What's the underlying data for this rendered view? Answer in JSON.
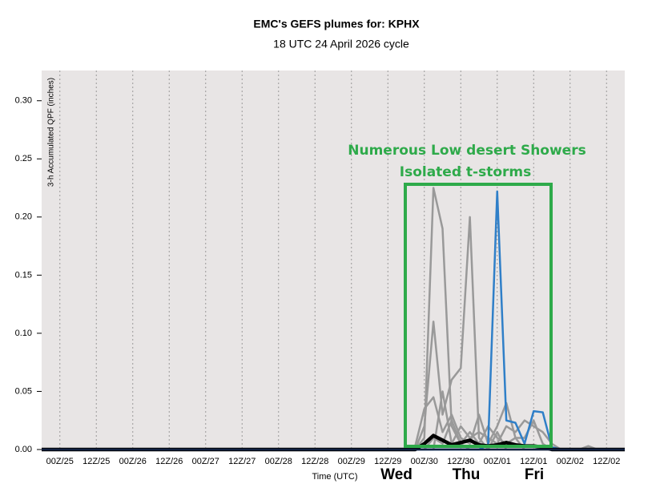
{
  "chart_data": {
    "type": "line",
    "title": "EMC's GEFS plumes for: KPHX",
    "subtitle": "18 UTC 24 April 2026 cycle",
    "ylabel": "3-h Accumulated QPF (inches)",
    "xlabel": "Time (UTC)",
    "annotations": [
      "Numerous Low desert Showers",
      "Isolated t-storms"
    ],
    "day_labels": [
      "Wed",
      "Thu",
      "Fri"
    ],
    "grid": "x",
    "background": "#e8e5e5",
    "categories": [
      null,
      null,
      "00Z/25",
      null,
      null,
      null,
      "12Z/25",
      null,
      null,
      null,
      "00Z/26",
      null,
      null,
      null,
      "12Z/26",
      null,
      null,
      null,
      "00Z/27",
      null,
      null,
      null,
      "12Z/27",
      null,
      null,
      null,
      "00Z/28",
      null,
      null,
      null,
      "12Z/28",
      null,
      null,
      null,
      "00Z/29",
      null,
      null,
      null,
      "12Z/29",
      null,
      null,
      null,
      "00Z/30",
      null,
      null,
      null,
      "12Z/30",
      null,
      null,
      null,
      "00Z/01",
      null,
      null,
      null,
      "12Z/01",
      null,
      null,
      null,
      "00Z/02",
      null,
      null,
      null,
      "12Z/02",
      null,
      null
    ],
    "ylim": [
      0,
      0.326
    ],
    "yticks": [
      {
        "value": 0,
        "label": "0.00"
      },
      {
        "value": 0.05,
        "label": "0.05"
      },
      {
        "value": 0.1,
        "label": "0.10"
      },
      {
        "value": 0.15,
        "label": "0.15"
      },
      {
        "value": 0.2,
        "label": "0.20"
      },
      {
        "value": 0.25,
        "label": "0.25"
      },
      {
        "value": 0.3,
        "label": "0.30"
      }
    ],
    "series": [
      {
        "color": "#999999",
        "linewidth": 2.5,
        "values": [
          0,
          0,
          0,
          0,
          0,
          0,
          0,
          0,
          0,
          0,
          0,
          0,
          0,
          0,
          0,
          0,
          0,
          0,
          0,
          0,
          0,
          0,
          0,
          0,
          0,
          0,
          0,
          0,
          0,
          0,
          0,
          0,
          0,
          0,
          0,
          0,
          0,
          0,
          0,
          0,
          0,
          0,
          0.01,
          0.225,
          0.19,
          0.02,
          0.005,
          0,
          0,
          0,
          0,
          0,
          0,
          0,
          0,
          0,
          0,
          0,
          0,
          0,
          0,
          0,
          0,
          0,
          0
        ]
      },
      {
        "color": "#999999",
        "linewidth": 2.5,
        "values": [
          0,
          0,
          0,
          0,
          0,
          0,
          0,
          0,
          0,
          0,
          0,
          0,
          0,
          0,
          0,
          0,
          0,
          0,
          0,
          0,
          0,
          0,
          0,
          0,
          0,
          0,
          0,
          0,
          0,
          0,
          0,
          0,
          0,
          0,
          0,
          0,
          0,
          0,
          0,
          0,
          0,
          0,
          0.02,
          0.11,
          0.03,
          0.06,
          0.07,
          0.2,
          0.01,
          0,
          0.015,
          0,
          0,
          0,
          0,
          0,
          0,
          0,
          0,
          0,
          0,
          0,
          0,
          0,
          0
        ]
      },
      {
        "color": "#999999",
        "linewidth": 2.5,
        "values": [
          0,
          0,
          0,
          0,
          0,
          0,
          0,
          0,
          0,
          0,
          0,
          0,
          0,
          0,
          0,
          0,
          0,
          0,
          0,
          0,
          0,
          0,
          0,
          0,
          0,
          0,
          0,
          0,
          0,
          0,
          0,
          0,
          0,
          0,
          0,
          0,
          0,
          0,
          0,
          0,
          0,
          0.003,
          0.035,
          0.045,
          0.015,
          0.03,
          0.01,
          0.005,
          0.03,
          0.005,
          0.02,
          0.04,
          0.01,
          0,
          0,
          0,
          0,
          0,
          0,
          0,
          0,
          0,
          0,
          0,
          0
        ]
      },
      {
        "color": "#999999",
        "linewidth": 2.5,
        "values": [
          0,
          0,
          0,
          0,
          0,
          0,
          0,
          0,
          0,
          0,
          0,
          0,
          0,
          0,
          0,
          0,
          0,
          0,
          0,
          0,
          0,
          0,
          0,
          0,
          0,
          0,
          0,
          0,
          0,
          0,
          0,
          0,
          0,
          0,
          0,
          0,
          0,
          0,
          0,
          0,
          0,
          0,
          0,
          0,
          0.05,
          0.005,
          0.02,
          0.01,
          0.015,
          0.01,
          0.005,
          0.02,
          0.015,
          0.025,
          0.02,
          0.015,
          0.005,
          0,
          0,
          0,
          0,
          0,
          0,
          0,
          0
        ]
      },
      {
        "color": "#999999",
        "linewidth": 2.5,
        "values": [
          0,
          0,
          0,
          0,
          0,
          0,
          0,
          0,
          0,
          0,
          0,
          0,
          0,
          0,
          0,
          0,
          0,
          0,
          0,
          0,
          0,
          0,
          0,
          0,
          0,
          0,
          0,
          0,
          0,
          0,
          0,
          0,
          0,
          0,
          0,
          0,
          0,
          0,
          0,
          0,
          0,
          0,
          0,
          0.01,
          0.005,
          0.025,
          0.005,
          0.015,
          0.005,
          0.02,
          0.01,
          0.005,
          0.01,
          0.01,
          0.025,
          0.005,
          0,
          0,
          0,
          0,
          0.003,
          0,
          0,
          0,
          0
        ]
      },
      {
        "color": "#2f7fc8",
        "linewidth": 2.5,
        "values": [
          0,
          0,
          0,
          0,
          0,
          0,
          0,
          0,
          0,
          0,
          0,
          0,
          0,
          0,
          0,
          0,
          0,
          0,
          0,
          0,
          0,
          0,
          0,
          0,
          0,
          0,
          0,
          0,
          0,
          0,
          0,
          0,
          0,
          0,
          0,
          0,
          0,
          0,
          0,
          0,
          0,
          0,
          0,
          0,
          0,
          0,
          0,
          0,
          0,
          0.004,
          0.222,
          0.025,
          0.023,
          0.005,
          0.033,
          0.032,
          0.002,
          0,
          0,
          0,
          0,
          0,
          0,
          0,
          0
        ]
      },
      {
        "color": "#000000",
        "linewidth": 4.5,
        "values": [
          0,
          0,
          0,
          0,
          0,
          0,
          0,
          0,
          0,
          0,
          0,
          0,
          0,
          0,
          0,
          0,
          0,
          0,
          0,
          0,
          0,
          0,
          0,
          0,
          0,
          0,
          0,
          0,
          0,
          0,
          0,
          0,
          0,
          0,
          0,
          0,
          0,
          0,
          0,
          0,
          0,
          0,
          0.005,
          0.012,
          0.008,
          0.004,
          0.006,
          0.008,
          0.004,
          0.003,
          0.004,
          0.006,
          0.004,
          0.003,
          0.003,
          0.002,
          0,
          0,
          0,
          0,
          0,
          0,
          0,
          0,
          0
        ]
      }
    ]
  }
}
